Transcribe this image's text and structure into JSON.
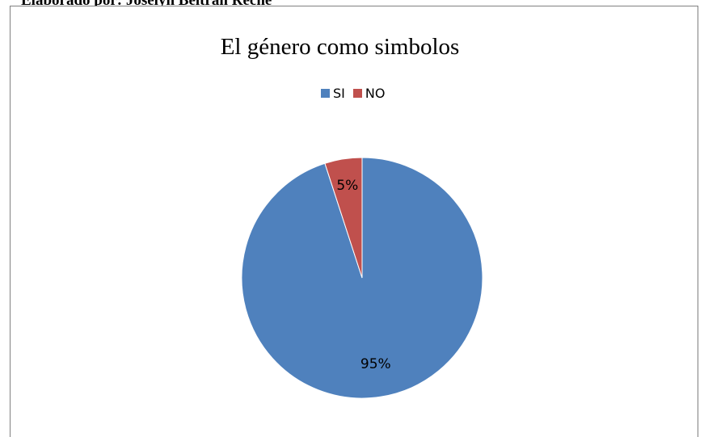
{
  "caption": "Elaborado por: Joselyn Beltrán Reche",
  "chart_data": {
    "type": "pie",
    "title": "El género como simbolos",
    "legend": "top",
    "slices": [
      {
        "name": "SI",
        "value": 95,
        "label": "95%",
        "color": "#4F81BD"
      },
      {
        "name": "NO",
        "value": 5,
        "label": "5%",
        "color": "#C0504D"
      }
    ]
  }
}
